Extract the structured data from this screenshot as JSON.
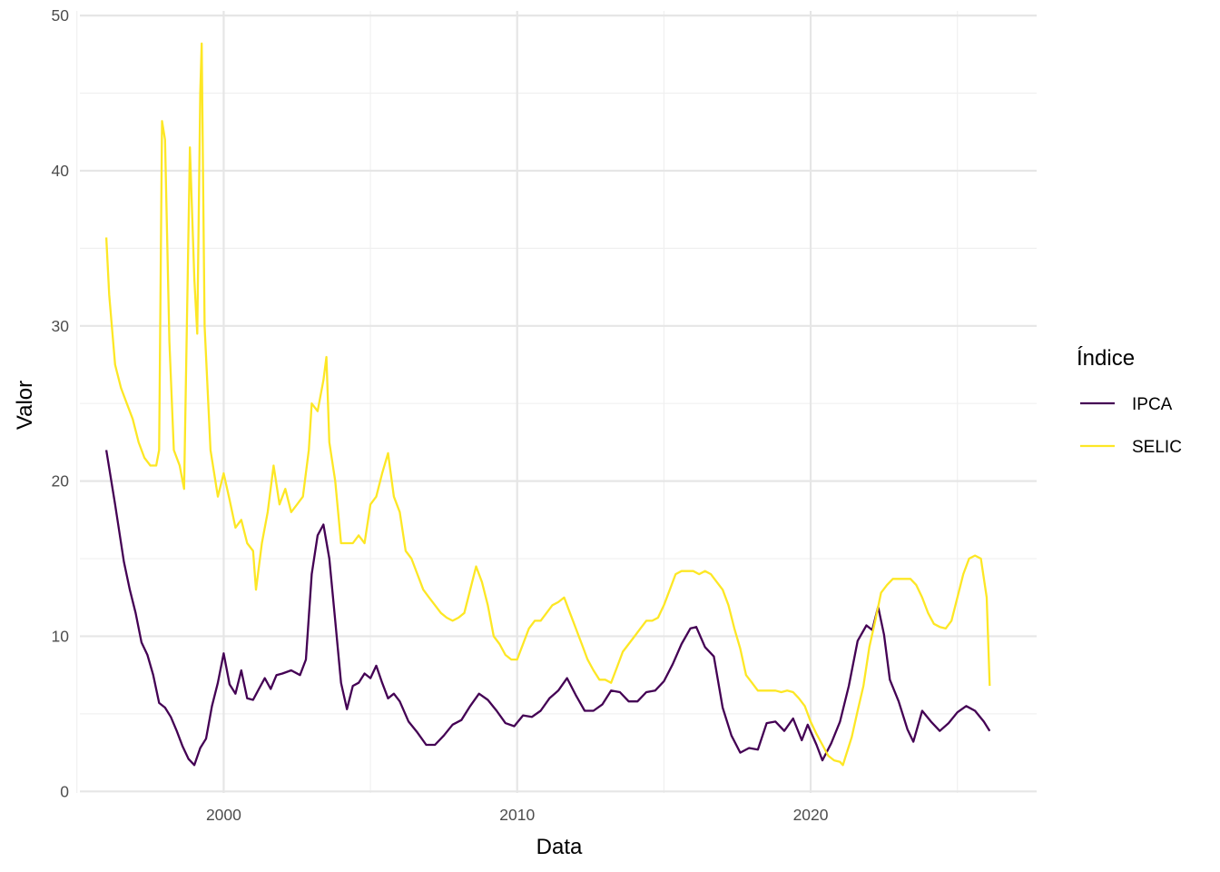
{
  "chart_data": {
    "type": "line",
    "title": "",
    "xlabel": "Data",
    "ylabel": "Valor",
    "xlim": [
      1995.1,
      2027.7
    ],
    "ylim": [
      -0.1,
      50.3
    ],
    "x_ticks": [
      2000,
      2010,
      2020
    ],
    "x_tick_labels": [
      "2000",
      "2010",
      "2020"
    ],
    "y_ticks": [
      0,
      10,
      20,
      30,
      40,
      50
    ],
    "y_tick_labels": [
      "0",
      "10",
      "20",
      "30",
      "40",
      "50"
    ],
    "grid": true,
    "legend": {
      "title": "Índice",
      "position": "right"
    },
    "series": [
      {
        "name": "IPCA",
        "color": "#440154",
        "points": [
          [
            1996.0,
            22.0
          ],
          [
            1996.3,
            18.5
          ],
          [
            1996.6,
            14.8
          ],
          [
            1996.8,
            13.0
          ],
          [
            1997.0,
            11.5
          ],
          [
            1997.2,
            9.6
          ],
          [
            1997.4,
            8.8
          ],
          [
            1997.6,
            7.5
          ],
          [
            1997.8,
            5.7
          ],
          [
            1998.0,
            5.4
          ],
          [
            1998.2,
            4.8
          ],
          [
            1998.4,
            3.9
          ],
          [
            1998.6,
            2.9
          ],
          [
            1998.8,
            2.1
          ],
          [
            1999.0,
            1.7
          ],
          [
            1999.2,
            2.8
          ],
          [
            1999.4,
            3.4
          ],
          [
            1999.6,
            5.5
          ],
          [
            1999.8,
            7.0
          ],
          [
            2000.0,
            8.9
          ],
          [
            2000.2,
            6.9
          ],
          [
            2000.4,
            6.3
          ],
          [
            2000.6,
            7.8
          ],
          [
            2000.8,
            6.0
          ],
          [
            2001.0,
            5.9
          ],
          [
            2001.2,
            6.6
          ],
          [
            2001.4,
            7.3
          ],
          [
            2001.6,
            6.6
          ],
          [
            2001.8,
            7.5
          ],
          [
            2002.0,
            7.6
          ],
          [
            2002.3,
            7.8
          ],
          [
            2002.6,
            7.5
          ],
          [
            2002.8,
            8.5
          ],
          [
            2003.0,
            14.0
          ],
          [
            2003.2,
            16.5
          ],
          [
            2003.4,
            17.2
          ],
          [
            2003.6,
            15.0
          ],
          [
            2003.8,
            11.0
          ],
          [
            2004.0,
            7.0
          ],
          [
            2004.2,
            5.3
          ],
          [
            2004.4,
            6.8
          ],
          [
            2004.6,
            7.0
          ],
          [
            2004.8,
            7.6
          ],
          [
            2005.0,
            7.3
          ],
          [
            2005.2,
            8.1
          ],
          [
            2005.4,
            7.0
          ],
          [
            2005.6,
            6.0
          ],
          [
            2005.8,
            6.3
          ],
          [
            2006.0,
            5.8
          ],
          [
            2006.3,
            4.5
          ],
          [
            2006.6,
            3.8
          ],
          [
            2006.9,
            3.0
          ],
          [
            2007.2,
            3.0
          ],
          [
            2007.5,
            3.6
          ],
          [
            2007.8,
            4.3
          ],
          [
            2008.1,
            4.6
          ],
          [
            2008.4,
            5.5
          ],
          [
            2008.7,
            6.3
          ],
          [
            2009.0,
            5.9
          ],
          [
            2009.3,
            5.2
          ],
          [
            2009.6,
            4.4
          ],
          [
            2009.9,
            4.2
          ],
          [
            2010.2,
            4.9
          ],
          [
            2010.5,
            4.8
          ],
          [
            2010.8,
            5.2
          ],
          [
            2011.1,
            6.0
          ],
          [
            2011.4,
            6.5
          ],
          [
            2011.7,
            7.3
          ],
          [
            2012.0,
            6.2
          ],
          [
            2012.3,
            5.2
          ],
          [
            2012.6,
            5.2
          ],
          [
            2012.9,
            5.6
          ],
          [
            2013.2,
            6.5
          ],
          [
            2013.5,
            6.4
          ],
          [
            2013.8,
            5.8
          ],
          [
            2014.1,
            5.8
          ],
          [
            2014.4,
            6.4
          ],
          [
            2014.7,
            6.5
          ],
          [
            2015.0,
            7.1
          ],
          [
            2015.3,
            8.2
          ],
          [
            2015.6,
            9.5
          ],
          [
            2015.9,
            10.5
          ],
          [
            2016.1,
            10.6
          ],
          [
            2016.4,
            9.3
          ],
          [
            2016.7,
            8.7
          ],
          [
            2017.0,
            5.4
          ],
          [
            2017.3,
            3.6
          ],
          [
            2017.6,
            2.5
          ],
          [
            2017.9,
            2.8
          ],
          [
            2018.2,
            2.7
          ],
          [
            2018.5,
            4.4
          ],
          [
            2018.8,
            4.5
          ],
          [
            2019.1,
            3.9
          ],
          [
            2019.4,
            4.7
          ],
          [
            2019.7,
            3.3
          ],
          [
            2019.9,
            4.3
          ],
          [
            2020.2,
            3.0
          ],
          [
            2020.4,
            2.0
          ],
          [
            2020.7,
            3.1
          ],
          [
            2021.0,
            4.5
          ],
          [
            2021.3,
            6.8
          ],
          [
            2021.6,
            9.7
          ],
          [
            2021.9,
            10.7
          ],
          [
            2022.1,
            10.4
          ],
          [
            2022.3,
            11.9
          ],
          [
            2022.5,
            10.1
          ],
          [
            2022.7,
            7.2
          ],
          [
            2023.0,
            5.8
          ],
          [
            2023.3,
            4.0
          ],
          [
            2023.5,
            3.2
          ],
          [
            2023.8,
            5.2
          ],
          [
            2024.1,
            4.5
          ],
          [
            2024.4,
            3.9
          ],
          [
            2024.7,
            4.4
          ],
          [
            2025.0,
            5.1
          ],
          [
            2025.3,
            5.5
          ],
          [
            2025.6,
            5.2
          ],
          [
            2025.9,
            4.5
          ],
          [
            2026.1,
            3.9
          ]
        ]
      },
      {
        "name": "SELIC",
        "color": "#FDE725",
        "points": [
          [
            1996.0,
            35.7
          ],
          [
            1996.1,
            32.0
          ],
          [
            1996.3,
            27.5
          ],
          [
            1996.5,
            26.0
          ],
          [
            1996.7,
            25.0
          ],
          [
            1996.9,
            24.0
          ],
          [
            1997.1,
            22.5
          ],
          [
            1997.3,
            21.5
          ],
          [
            1997.5,
            21.0
          ],
          [
            1997.7,
            21.0
          ],
          [
            1997.8,
            22.0
          ],
          [
            1997.9,
            43.2
          ],
          [
            1998.0,
            42.0
          ],
          [
            1998.15,
            29.0
          ],
          [
            1998.3,
            22.0
          ],
          [
            1998.5,
            21.0
          ],
          [
            1998.65,
            19.5
          ],
          [
            1998.85,
            41.5
          ],
          [
            1999.0,
            33.0
          ],
          [
            1999.1,
            29.5
          ],
          [
            1999.2,
            45.0
          ],
          [
            1999.25,
            48.2
          ],
          [
            1999.35,
            30.0
          ],
          [
            1999.55,
            22.0
          ],
          [
            1999.8,
            19.0
          ],
          [
            2000.0,
            20.5
          ],
          [
            2000.2,
            18.8
          ],
          [
            2000.4,
            17.0
          ],
          [
            2000.6,
            17.5
          ],
          [
            2000.8,
            16.0
          ],
          [
            2001.0,
            15.5
          ],
          [
            2001.1,
            13.0
          ],
          [
            2001.3,
            16.0
          ],
          [
            2001.5,
            18.0
          ],
          [
            2001.7,
            21.0
          ],
          [
            2001.9,
            18.5
          ],
          [
            2002.1,
            19.5
          ],
          [
            2002.3,
            18.0
          ],
          [
            2002.5,
            18.5
          ],
          [
            2002.7,
            19.0
          ],
          [
            2002.9,
            22.0
          ],
          [
            2003.0,
            25.0
          ],
          [
            2003.2,
            24.5
          ],
          [
            2003.4,
            26.5
          ],
          [
            2003.5,
            28.0
          ],
          [
            2003.6,
            22.5
          ],
          [
            2003.8,
            20.0
          ],
          [
            2004.0,
            16.0
          ],
          [
            2004.2,
            16.0
          ],
          [
            2004.4,
            16.0
          ],
          [
            2004.6,
            16.5
          ],
          [
            2004.8,
            16.0
          ],
          [
            2005.0,
            18.5
          ],
          [
            2005.2,
            19.0
          ],
          [
            2005.4,
            20.5
          ],
          [
            2005.6,
            21.8
          ],
          [
            2005.8,
            19.0
          ],
          [
            2006.0,
            18.0
          ],
          [
            2006.2,
            15.5
          ],
          [
            2006.4,
            15.0
          ],
          [
            2006.6,
            14.0
          ],
          [
            2006.8,
            13.0
          ],
          [
            2007.0,
            12.5
          ],
          [
            2007.2,
            12.0
          ],
          [
            2007.4,
            11.5
          ],
          [
            2007.6,
            11.2
          ],
          [
            2007.8,
            11.0
          ],
          [
            2008.0,
            11.2
          ],
          [
            2008.2,
            11.5
          ],
          [
            2008.4,
            13.0
          ],
          [
            2008.6,
            14.5
          ],
          [
            2008.8,
            13.5
          ],
          [
            2009.0,
            12.0
          ],
          [
            2009.2,
            10.0
          ],
          [
            2009.4,
            9.5
          ],
          [
            2009.6,
            8.8
          ],
          [
            2009.8,
            8.5
          ],
          [
            2010.0,
            8.5
          ],
          [
            2010.2,
            9.5
          ],
          [
            2010.4,
            10.5
          ],
          [
            2010.6,
            11.0
          ],
          [
            2010.8,
            11.0
          ],
          [
            2011.0,
            11.5
          ],
          [
            2011.2,
            12.0
          ],
          [
            2011.4,
            12.2
          ],
          [
            2011.6,
            12.5
          ],
          [
            2011.8,
            11.5
          ],
          [
            2012.0,
            10.5
          ],
          [
            2012.2,
            9.5
          ],
          [
            2012.4,
            8.5
          ],
          [
            2012.6,
            7.8
          ],
          [
            2012.8,
            7.2
          ],
          [
            2013.0,
            7.2
          ],
          [
            2013.2,
            7.0
          ],
          [
            2013.4,
            8.0
          ],
          [
            2013.6,
            9.0
          ],
          [
            2013.8,
            9.5
          ],
          [
            2014.0,
            10.0
          ],
          [
            2014.2,
            10.5
          ],
          [
            2014.4,
            11.0
          ],
          [
            2014.6,
            11.0
          ],
          [
            2014.8,
            11.2
          ],
          [
            2015.0,
            12.0
          ],
          [
            2015.2,
            13.0
          ],
          [
            2015.4,
            14.0
          ],
          [
            2015.6,
            14.2
          ],
          [
            2015.8,
            14.2
          ],
          [
            2016.0,
            14.2
          ],
          [
            2016.2,
            14.0
          ],
          [
            2016.4,
            14.2
          ],
          [
            2016.6,
            14.0
          ],
          [
            2016.8,
            13.5
          ],
          [
            2017.0,
            13.0
          ],
          [
            2017.2,
            12.0
          ],
          [
            2017.4,
            10.5
          ],
          [
            2017.6,
            9.2
          ],
          [
            2017.8,
            7.5
          ],
          [
            2018.0,
            7.0
          ],
          [
            2018.2,
            6.5
          ],
          [
            2018.4,
            6.5
          ],
          [
            2018.6,
            6.5
          ],
          [
            2018.8,
            6.5
          ],
          [
            2019.0,
            6.4
          ],
          [
            2019.2,
            6.5
          ],
          [
            2019.4,
            6.4
          ],
          [
            2019.6,
            6.0
          ],
          [
            2019.8,
            5.5
          ],
          [
            2020.0,
            4.5
          ],
          [
            2020.2,
            3.7
          ],
          [
            2020.4,
            3.0
          ],
          [
            2020.6,
            2.3
          ],
          [
            2020.8,
            2.0
          ],
          [
            2021.0,
            1.9
          ],
          [
            2021.1,
            1.7
          ],
          [
            2021.2,
            2.3
          ],
          [
            2021.4,
            3.5
          ],
          [
            2021.6,
            5.2
          ],
          [
            2021.8,
            6.8
          ],
          [
            2022.0,
            9.3
          ],
          [
            2022.2,
            11.0
          ],
          [
            2022.4,
            12.8
          ],
          [
            2022.6,
            13.3
          ],
          [
            2022.8,
            13.7
          ],
          [
            2023.0,
            13.7
          ],
          [
            2023.2,
            13.7
          ],
          [
            2023.4,
            13.7
          ],
          [
            2023.6,
            13.3
          ],
          [
            2023.8,
            12.5
          ],
          [
            2024.0,
            11.5
          ],
          [
            2024.2,
            10.8
          ],
          [
            2024.4,
            10.6
          ],
          [
            2024.6,
            10.5
          ],
          [
            2024.8,
            11.0
          ],
          [
            2025.0,
            12.5
          ],
          [
            2025.2,
            14.0
          ],
          [
            2025.4,
            15.0
          ],
          [
            2025.6,
            15.2
          ],
          [
            2025.8,
            15.0
          ],
          [
            2026.0,
            12.5
          ],
          [
            2026.1,
            6.8
          ]
        ]
      }
    ]
  }
}
